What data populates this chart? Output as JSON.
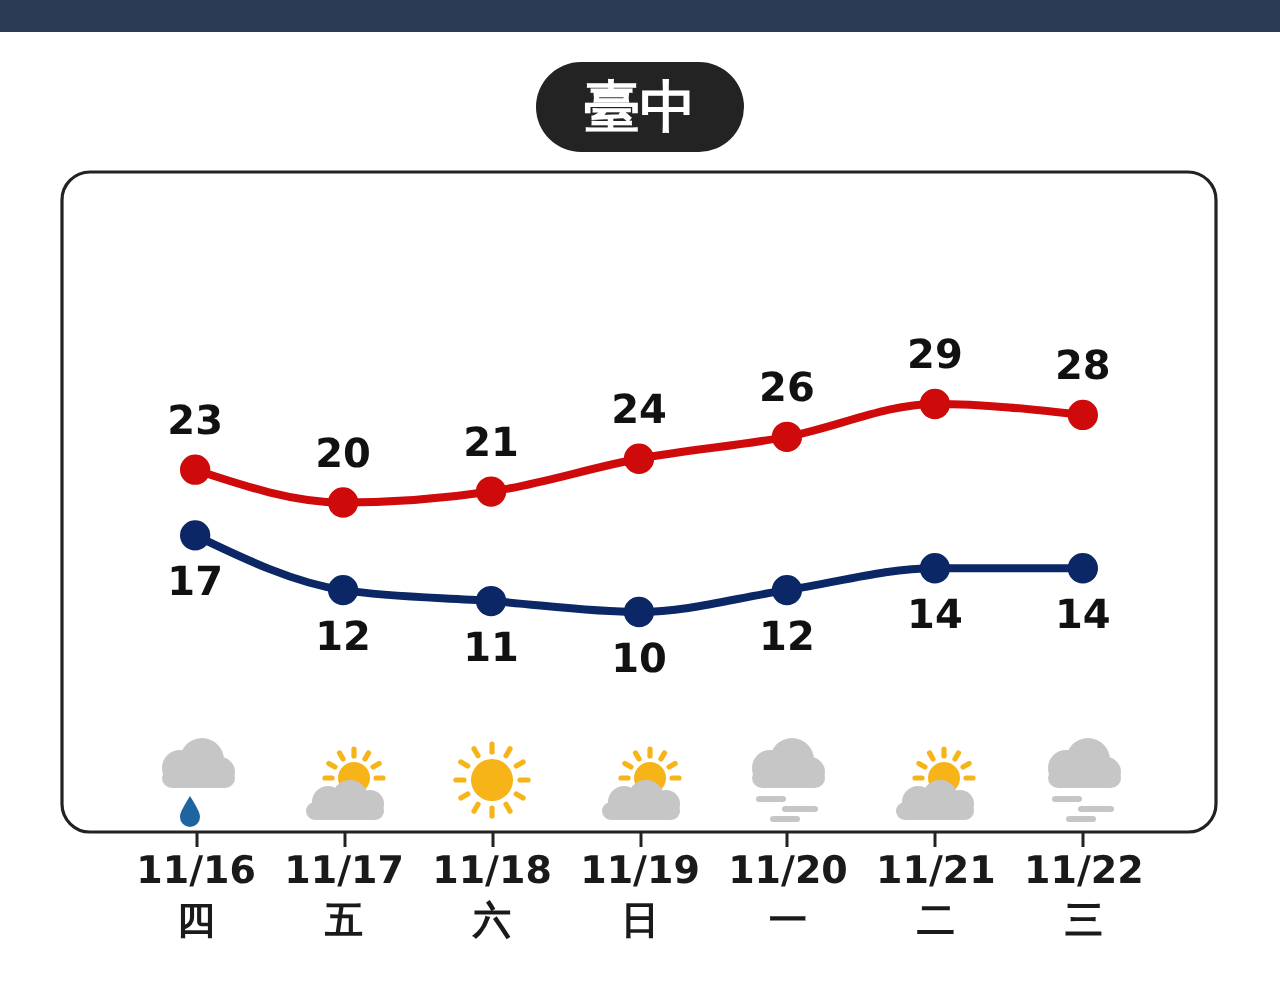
{
  "chart_data": {
    "type": "line",
    "title": "臺中",
    "categories": [
      "11/16\n四",
      "11/17\n五",
      "11/18\n六",
      "11/19\n日",
      "11/20\n一",
      "11/21\n二",
      "11/22\n三"
    ],
    "series": [
      {
        "color": "#cf0a0a",
        "values": [
          23,
          20,
          21,
          24,
          26,
          29,
          28
        ]
      },
      {
        "color": "#0c2766",
        "values": [
          17,
          12,
          11,
          10,
          12,
          14,
          14
        ]
      }
    ],
    "data_labels": true,
    "marker": "circle",
    "line_style": "solid",
    "grid": false,
    "legend": false,
    "tick_labels": "x"
  }
}
